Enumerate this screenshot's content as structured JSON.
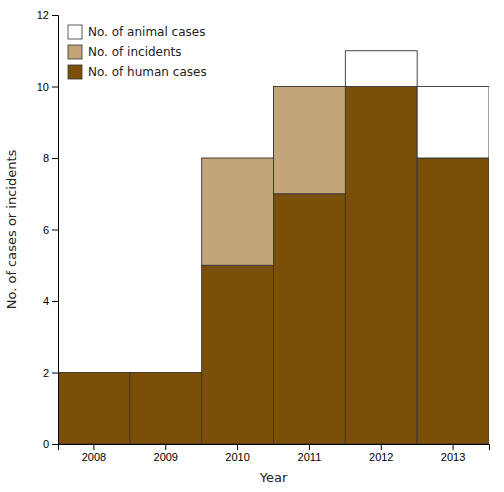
{
  "chart_data": {
    "type": "bar",
    "stacked": true,
    "categories": [
      "2008",
      "2009",
      "2010",
      "2011",
      "2012",
      "2013"
    ],
    "series": [
      {
        "name": "No. of human cases",
        "color": "#7B4F0A",
        "values": [
          2,
          2,
          5,
          7,
          10,
          8
        ]
      },
      {
        "name": "No. of incidents",
        "color": "#C4A57A",
        "values": [
          0,
          0,
          3,
          3,
          0,
          0
        ]
      },
      {
        "name": "No. of animal cases",
        "color": "#FFFFFF",
        "values": [
          0,
          0,
          0,
          0,
          1,
          2
        ]
      }
    ],
    "xlabel": "Year",
    "ylabel": "No. of cases or incidents",
    "ylim": [
      0,
      12
    ],
    "yticks": [
      0,
      2,
      4,
      6,
      8,
      10,
      12
    ],
    "grid": false,
    "legend": "upper-left"
  }
}
